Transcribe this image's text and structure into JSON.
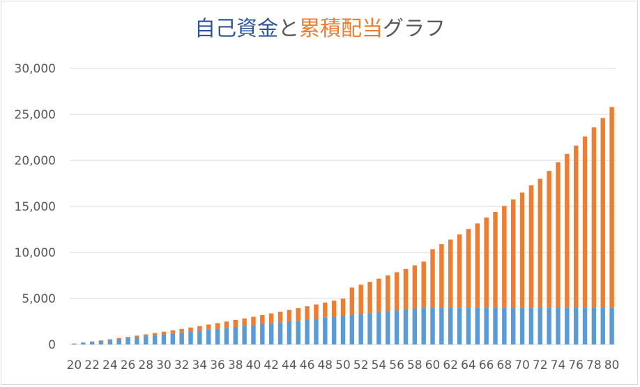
{
  "chart_data": {
    "type": "bar",
    "stacked": true,
    "title_parts": [
      {
        "text": "自己資金",
        "color": "#2f5597"
      },
      {
        "text": "と",
        "color": "#595959"
      },
      {
        "text": "累積配当",
        "color": "#ed7d31"
      },
      {
        "text": "グラフ",
        "color": "#595959"
      }
    ],
    "title": "自己資金と累積配当グラフ",
    "xlabel": "",
    "ylabel": "",
    "ylim": [
      0,
      30000
    ],
    "y_ticks": [
      "0",
      "5,000",
      "10,000",
      "15,000",
      "20,000",
      "25,000",
      "30,000"
    ],
    "x": [
      20,
      21,
      22,
      23,
      24,
      25,
      26,
      27,
      28,
      29,
      30,
      31,
      32,
      33,
      34,
      35,
      36,
      37,
      38,
      39,
      40,
      41,
      42,
      43,
      44,
      45,
      46,
      47,
      48,
      49,
      50,
      51,
      52,
      53,
      54,
      55,
      56,
      57,
      58,
      59,
      60,
      61,
      62,
      63,
      64,
      65,
      66,
      67,
      68,
      69,
      70,
      71,
      72,
      73,
      74,
      75,
      76,
      77,
      78,
      79,
      80
    ],
    "x_tick_labels": [
      "20",
      "22",
      "24",
      "26",
      "28",
      "30",
      "32",
      "34",
      "36",
      "38",
      "40",
      "42",
      "44",
      "46",
      "48",
      "50",
      "52",
      "54",
      "56",
      "58",
      "60",
      "62",
      "64",
      "66",
      "68",
      "70",
      "72",
      "74",
      "76",
      "78",
      "80"
    ],
    "grid": true,
    "series": [
      {
        "color": "#5b9bd5",
        "values": [
          100,
          200,
          300,
          400,
          500,
          600,
          700,
          800,
          900,
          1000,
          1100,
          1200,
          1300,
          1400,
          1500,
          1600,
          1700,
          1800,
          1900,
          2000,
          2100,
          2200,
          2300,
          2400,
          2500,
          2600,
          2700,
          2800,
          2900,
          3000,
          3100,
          3200,
          3300,
          3400,
          3500,
          3600,
          3700,
          3800,
          3900,
          4000,
          4000,
          4000,
          4000,
          4000,
          4000,
          4000,
          4000,
          4000,
          4000,
          4000,
          4000,
          4000,
          4000,
          4000,
          4000,
          4000,
          4000,
          4000,
          4000,
          4000,
          4000
        ]
      },
      {
        "color": "#ed7d31",
        "values": [
          3,
          10,
          25,
          45,
          70,
          100,
          130,
          160,
          200,
          240,
          290,
          340,
          390,
          440,
          500,
          560,
          620,
          690,
          760,
          830,
          910,
          990,
          1070,
          1160,
          1250,
          1350,
          1450,
          1550,
          1650,
          1760,
          1870,
          2980,
          3200,
          3400,
          3650,
          3900,
          4150,
          4400,
          4700,
          5000,
          6350,
          6900,
          7400,
          7950,
          8550,
          9150,
          9800,
          10400,
          11050,
          11750,
          12500,
          13300,
          14000,
          14850,
          15800,
          16700,
          17600,
          18600,
          19600,
          20600,
          21800
        ]
      }
    ]
  }
}
